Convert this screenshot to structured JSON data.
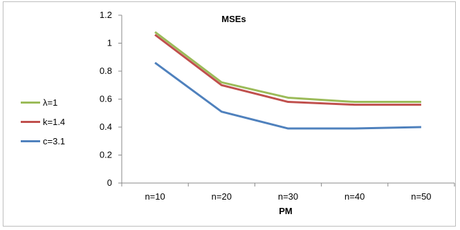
{
  "chart_data": {
    "type": "line",
    "title": "MSEs",
    "xlabel": "PM",
    "ylabel": "",
    "categories": [
      "n=10",
      "n=20",
      "n=30",
      "n=40",
      "n=50"
    ],
    "ylim": [
      0,
      1.2
    ],
    "yticks": [
      "0",
      "0.2",
      "0.4",
      "0.6",
      "0.8",
      "1",
      "1.2"
    ],
    "grid": false,
    "legend_position": "left",
    "series": [
      {
        "name": "λ=1",
        "color": "#9bbb59",
        "values": [
          1.08,
          0.72,
          0.61,
          0.58,
          0.58
        ]
      },
      {
        "name": "k=1.4",
        "color": "#c0504d",
        "values": [
          1.06,
          0.7,
          0.58,
          0.56,
          0.56
        ]
      },
      {
        "name": "c=3.1",
        "color": "#4f81bd",
        "values": [
          0.86,
          0.51,
          0.39,
          0.39,
          0.4
        ]
      }
    ]
  }
}
